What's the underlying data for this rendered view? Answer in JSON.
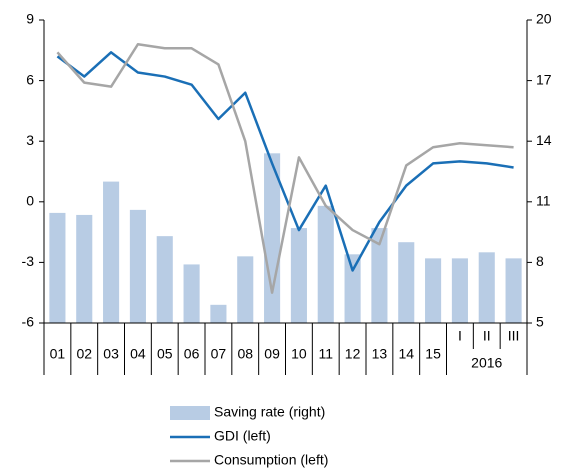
{
  "chart_data": {
    "type": "combo",
    "categories": [
      "01",
      "02",
      "03",
      "04",
      "05",
      "06",
      "07",
      "08",
      "09",
      "10",
      "11",
      "12",
      "13",
      "14",
      "15",
      "I",
      "II",
      "III"
    ],
    "group_label": "2016",
    "ylim": [
      -6,
      9
    ],
    "yticks": [
      9,
      6,
      3,
      0,
      -3,
      -6
    ],
    "y2lim": [
      5,
      20
    ],
    "y2ticks": [
      20,
      17,
      14,
      11,
      8,
      5
    ],
    "legend": "bottom",
    "series": [
      {
        "name": "Saving rate (right)",
        "type": "bar",
        "axis": "y2",
        "color": "#b8cce4",
        "values": [
          10.45,
          10.35,
          12.0,
          10.6,
          9.3,
          7.9,
          5.9,
          8.3,
          13.4,
          9.7,
          10.8,
          8.4,
          9.7,
          9.0,
          8.2,
          8.2,
          8.5,
          8.2
        ]
      },
      {
        "name": "GDI (left)",
        "type": "line",
        "color": "#1a6fb6",
        "values": [
          7.2,
          6.2,
          7.4,
          6.4,
          6.2,
          5.8,
          4.1,
          5.4,
          1.9,
          -1.4,
          0.8,
          -3.4,
          -1.0,
          0.8,
          1.9,
          2.0,
          1.9,
          1.7
        ]
      },
      {
        "name": "Consumption (left)",
        "type": "line",
        "color": "#a6a6a6",
        "values": [
          7.4,
          5.9,
          5.7,
          7.8,
          7.6,
          7.6,
          6.8,
          3.0,
          -4.5,
          2.2,
          -0.2,
          -1.4,
          -2.1,
          1.8,
          2.7,
          2.9,
          2.8,
          2.7
        ]
      }
    ]
  }
}
